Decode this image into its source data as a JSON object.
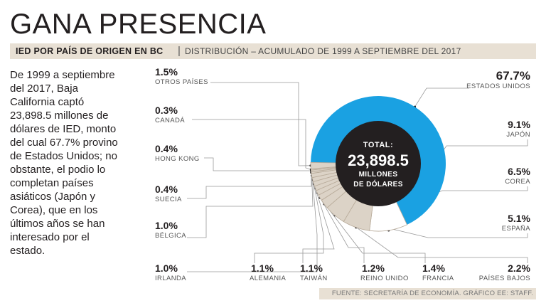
{
  "header": {
    "title": "GANA PRESENCIA",
    "subtitle_bold": "IED POR PAÍS DE ORIGEN EN BC",
    "subtitle_separator": "|",
    "subtitle": "DISTRIBUCIÓN – ACUMULADO DE 1999 A SEPTIEMBRE DEL 2017"
  },
  "description": "De 1999 a septiembre del 2017, Baja California captó 23,898.5 millones de dólares de IED, monto del cual 67.7% provino de Estados Unidos; no obstante, el podio lo completan países asiáticos (Japón y Corea), que en los últimos años se han interesado por el estado.",
  "center": {
    "line1": "TOTAL:",
    "line2": "23,898.5",
    "line3": "MILLONES",
    "line4": "DE DÓLARES"
  },
  "source": "FUENTE: SECRETARÍA DE ECONOMÍA.  GRÁFICO EE: STAFF.",
  "colors": {
    "usa": "#1aa1e2",
    "japan": "#ffffff",
    "other_slices": "#dcd3c7",
    "border": "#b8ab9a",
    "center": "#231f20",
    "banner": "#e8e0d4",
    "leader": "#999999"
  },
  "chart_data": {
    "type": "pie",
    "title": "IED POR PAÍS DE ORIGEN EN BC",
    "total": 23898.5,
    "unit": "%",
    "slices": [
      {
        "name": "ESTADOS UNIDOS",
        "value": 67.7,
        "label": "67.7%"
      },
      {
        "name": "JAPÓN",
        "value": 9.1,
        "label": "9.1%"
      },
      {
        "name": "COREA",
        "value": 6.5,
        "label": "6.5%"
      },
      {
        "name": "ESPAÑA",
        "value": 5.1,
        "label": "5.1%"
      },
      {
        "name": "PAÍSES BAJOS",
        "value": 2.2,
        "label": "2.2%"
      },
      {
        "name": "FRANCIA",
        "value": 1.4,
        "label": "1.4%"
      },
      {
        "name": "REINO UNIDO",
        "value": 1.2,
        "label": "1.2%"
      },
      {
        "name": "TAIWÁN",
        "value": 1.1,
        "label": "1.1%"
      },
      {
        "name": "ALEMANIA",
        "value": 1.1,
        "label": "1.1%"
      },
      {
        "name": "IRLANDA",
        "value": 1.0,
        "label": "1.0%"
      },
      {
        "name": "BÉLGICA",
        "value": 1.0,
        "label": "1.0%"
      },
      {
        "name": "SUECIA",
        "value": 0.4,
        "label": "0.4%"
      },
      {
        "name": "HONG KONG",
        "value": 0.4,
        "label": "0.4%"
      },
      {
        "name": "CANADÁ",
        "value": 0.3,
        "label": "0.3%"
      },
      {
        "name": "OTROS PAÍSES",
        "value": 1.5,
        "label": "1.5%"
      }
    ]
  }
}
